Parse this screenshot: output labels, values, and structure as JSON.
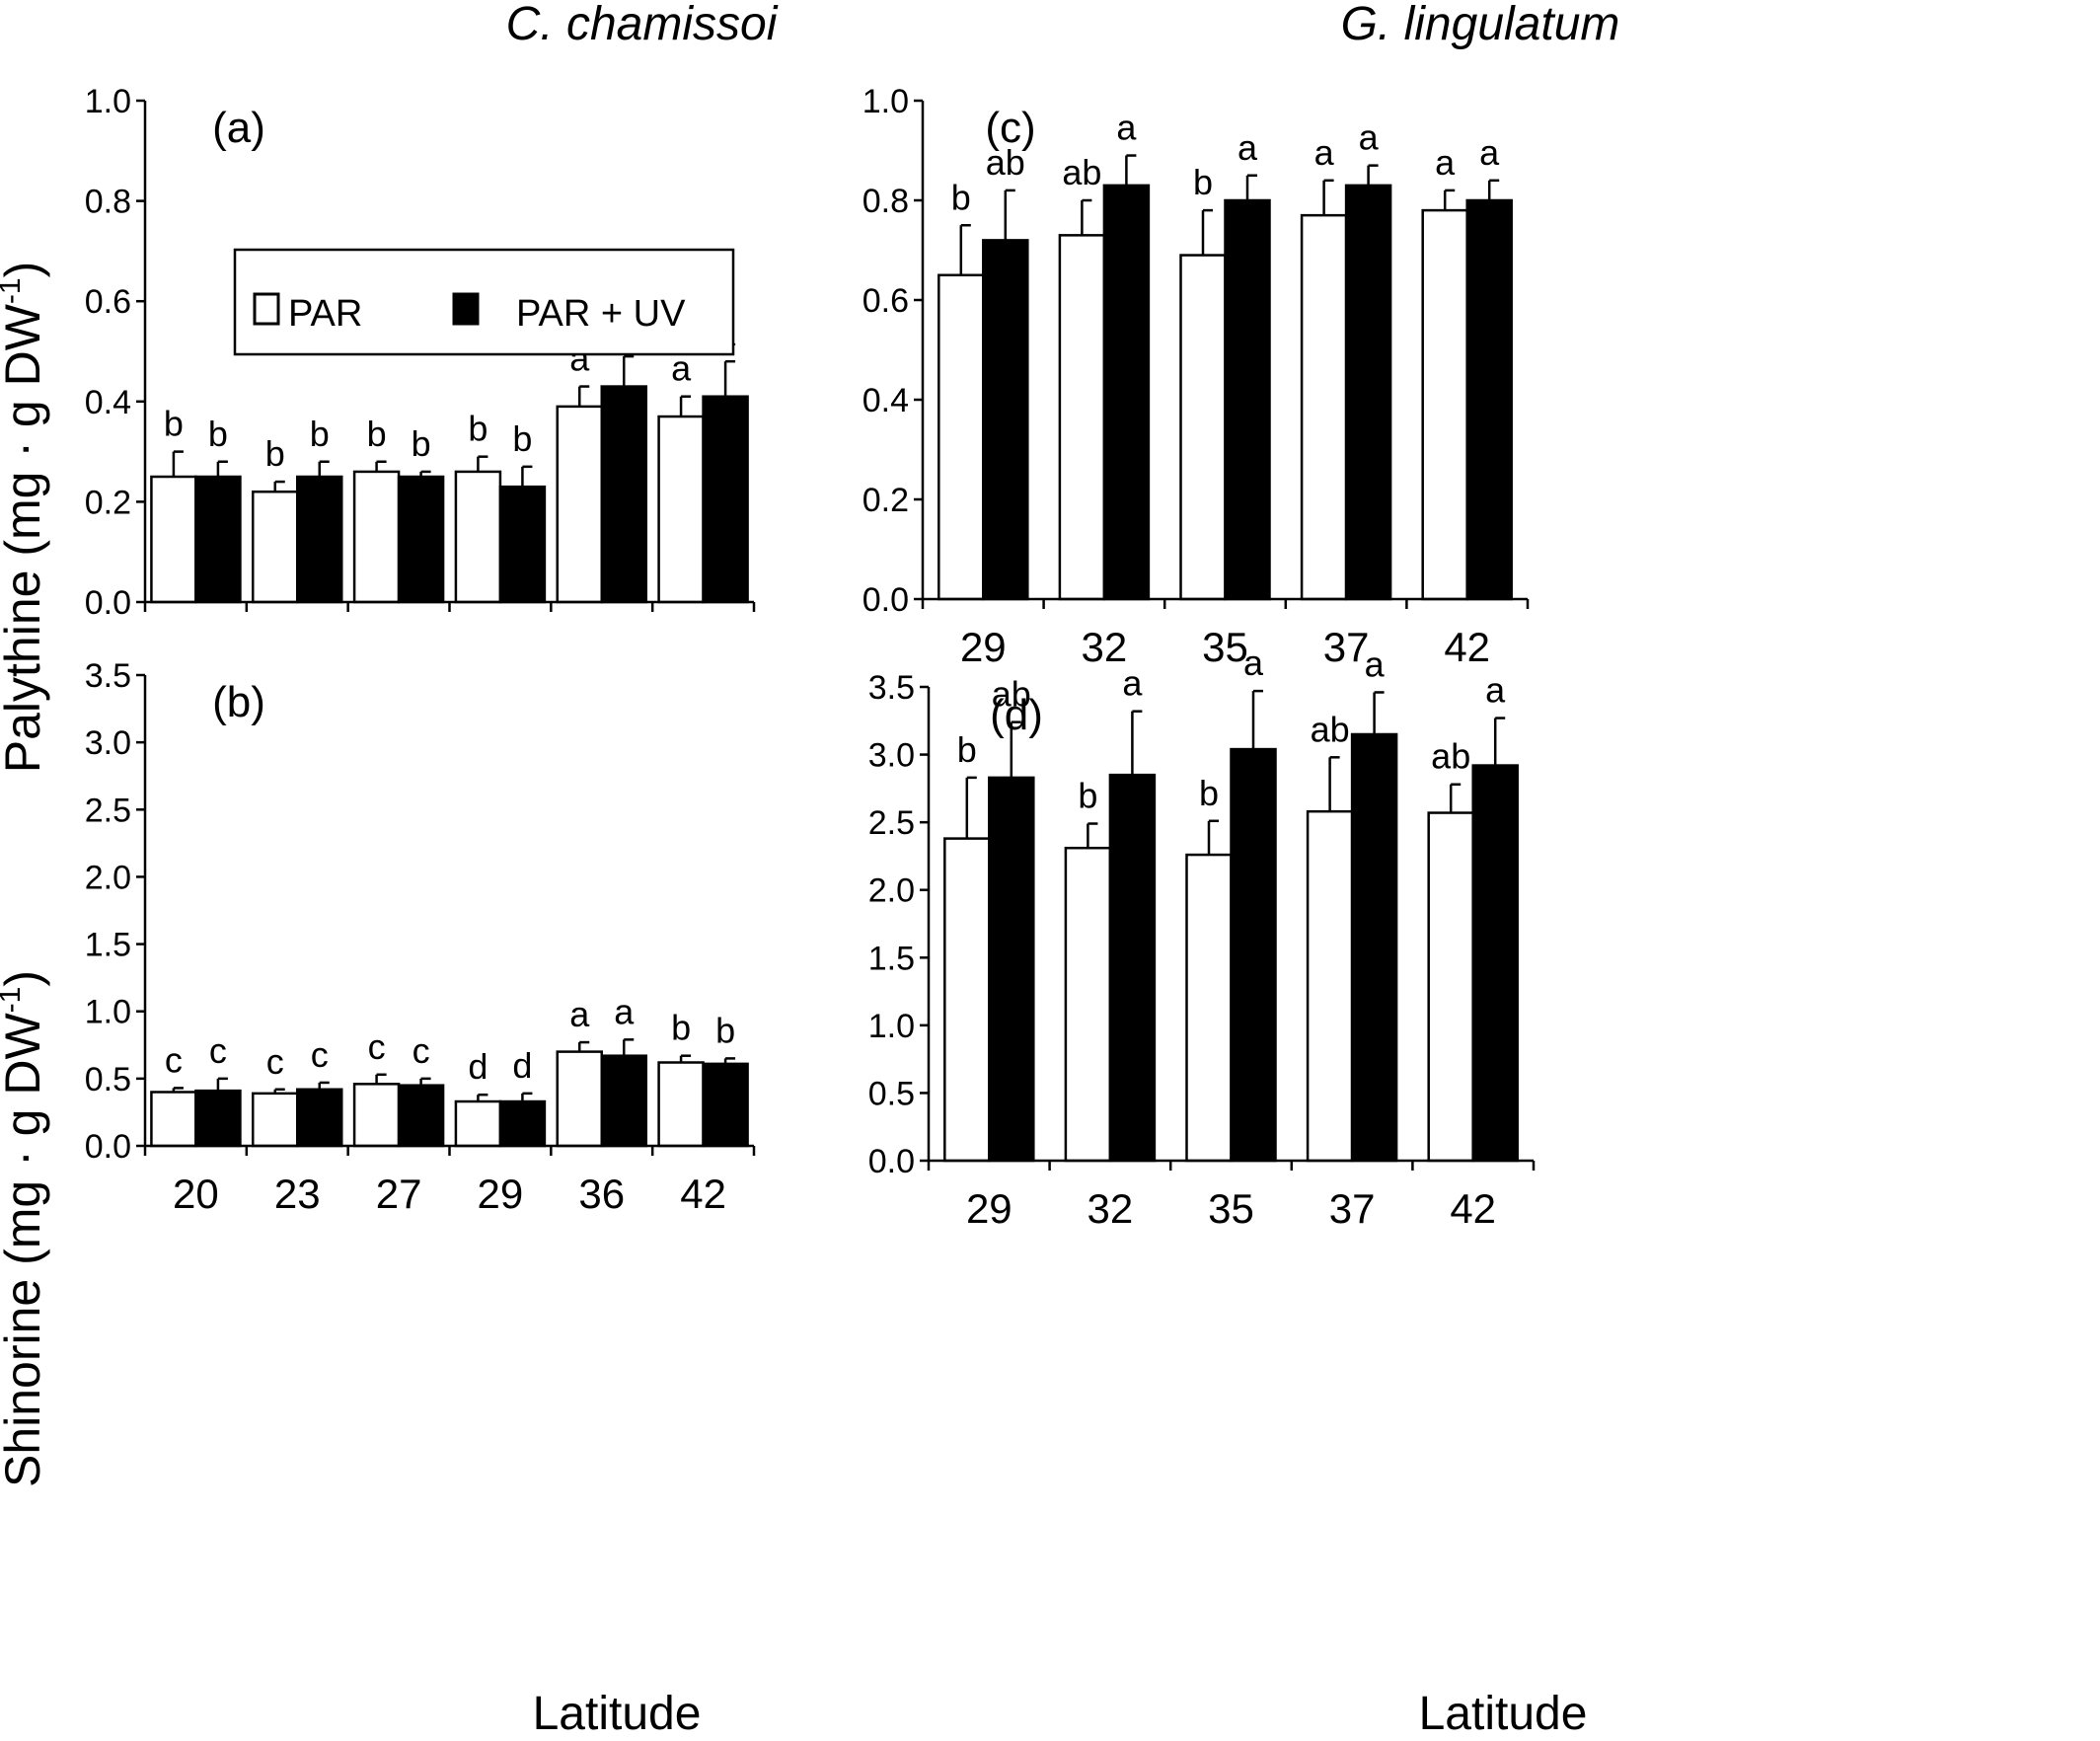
{
  "species_titles": [
    "C. chamissoi",
    "G. lingulatum"
  ],
  "y_titles": {
    "top": {
      "base": "Palythine (mg · g DW",
      "sup": "-1",
      "close": ")"
    },
    "bottom": {
      "base": "Shinorine (mg · g DW",
      "sup": "-1",
      "close": ")"
    }
  },
  "x_titles": [
    "Latitude",
    "Latitude"
  ],
  "legend": {
    "position": "top-left of panel (a)",
    "entries": [
      "PAR",
      "PAR + UV"
    ]
  },
  "colors": {
    "PAR": "#ffffff",
    "PAR + UV": "#000000",
    "stroke": "#000000"
  },
  "chart_data": [
    {
      "type": "bar",
      "panel_label": "(a)",
      "categories": [
        "20",
        "23",
        "27",
        "29",
        "36",
        "42"
      ],
      "series": [
        {
          "name": "PAR",
          "values": [
            0.25,
            0.22,
            0.26,
            0.26,
            0.39,
            0.37
          ],
          "errors": [
            0.05,
            0.02,
            0.02,
            0.03,
            0.04,
            0.04
          ],
          "letters": [
            "b",
            "b",
            "b",
            "b",
            "a",
            "a"
          ]
        },
        {
          "name": "PAR + UV",
          "values": [
            0.25,
            0.25,
            0.25,
            0.23,
            0.43,
            0.41
          ],
          "errors": [
            0.03,
            0.03,
            0.01,
            0.04,
            0.06,
            0.07
          ],
          "letters": [
            "b",
            "b",
            "b",
            "b",
            "a",
            "a"
          ]
        }
      ],
      "ylim": [
        0,
        1.0
      ],
      "yticks": [
        "0.0",
        "0.2",
        "0.4",
        "0.6",
        "0.8",
        "1.0"
      ]
    },
    {
      "type": "bar",
      "panel_label": "(b)",
      "categories": [
        "20",
        "23",
        "27",
        "29",
        "36",
        "42"
      ],
      "series": [
        {
          "name": "PAR",
          "values": [
            0.4,
            0.39,
            0.46,
            0.33,
            0.7,
            0.62
          ],
          "errors": [
            0.03,
            0.03,
            0.07,
            0.05,
            0.07,
            0.05
          ],
          "letters": [
            "c",
            "c",
            "c",
            "d",
            "a",
            "b"
          ]
        },
        {
          "name": "PAR + UV",
          "values": [
            0.41,
            0.42,
            0.45,
            0.33,
            0.67,
            0.61
          ],
          "errors": [
            0.09,
            0.05,
            0.05,
            0.06,
            0.12,
            0.04
          ],
          "letters": [
            "c",
            "c",
            "c",
            "d",
            "a",
            "b"
          ]
        }
      ],
      "ylim": [
        0,
        3.5
      ],
      "yticks": [
        "0.0",
        "0.5",
        "1.0",
        "1.5",
        "2.0",
        "2.5",
        "3.0",
        "3.5"
      ]
    },
    {
      "type": "bar",
      "panel_label": "(c)",
      "categories": [
        "29",
        "32",
        "35",
        "37",
        "42"
      ],
      "series": [
        {
          "name": "PAR",
          "values": [
            0.65,
            0.73,
            0.69,
            0.77,
            0.78
          ],
          "errors": [
            0.1,
            0.07,
            0.09,
            0.07,
            0.04
          ],
          "letters": [
            "b",
            "ab",
            "b",
            "a",
            "a"
          ]
        },
        {
          "name": "PAR + UV",
          "values": [
            0.72,
            0.83,
            0.8,
            0.83,
            0.8
          ],
          "errors": [
            0.1,
            0.06,
            0.05,
            0.04,
            0.04
          ],
          "letters": [
            "ab",
            "a",
            "a",
            "a",
            "a"
          ]
        }
      ],
      "ylim": [
        0,
        1.0
      ],
      "yticks": [
        "0.0",
        "0.2",
        "0.4",
        "0.6",
        "0.8",
        "1.0"
      ]
    },
    {
      "type": "bar",
      "panel_label": "(d)",
      "categories": [
        "29",
        "32",
        "35",
        "37",
        "42"
      ],
      "series": [
        {
          "name": "PAR",
          "values": [
            2.38,
            2.31,
            2.26,
            2.58,
            2.57
          ],
          "errors": [
            0.45,
            0.18,
            0.25,
            0.4,
            0.21
          ],
          "letters": [
            "b",
            "b",
            "b",
            "ab",
            "ab"
          ]
        },
        {
          "name": "PAR + UV",
          "values": [
            2.83,
            2.85,
            3.04,
            3.15,
            2.92
          ],
          "errors": [
            0.41,
            0.47,
            0.43,
            0.31,
            0.35
          ],
          "letters": [
            "ab",
            "a",
            "a",
            "a",
            "a"
          ]
        }
      ],
      "ylim": [
        0,
        3.5
      ],
      "yticks": [
        "0.0",
        "0.5",
        "1.0",
        "1.5",
        "2.0",
        "2.5",
        "3.0",
        "3.5"
      ]
    }
  ]
}
